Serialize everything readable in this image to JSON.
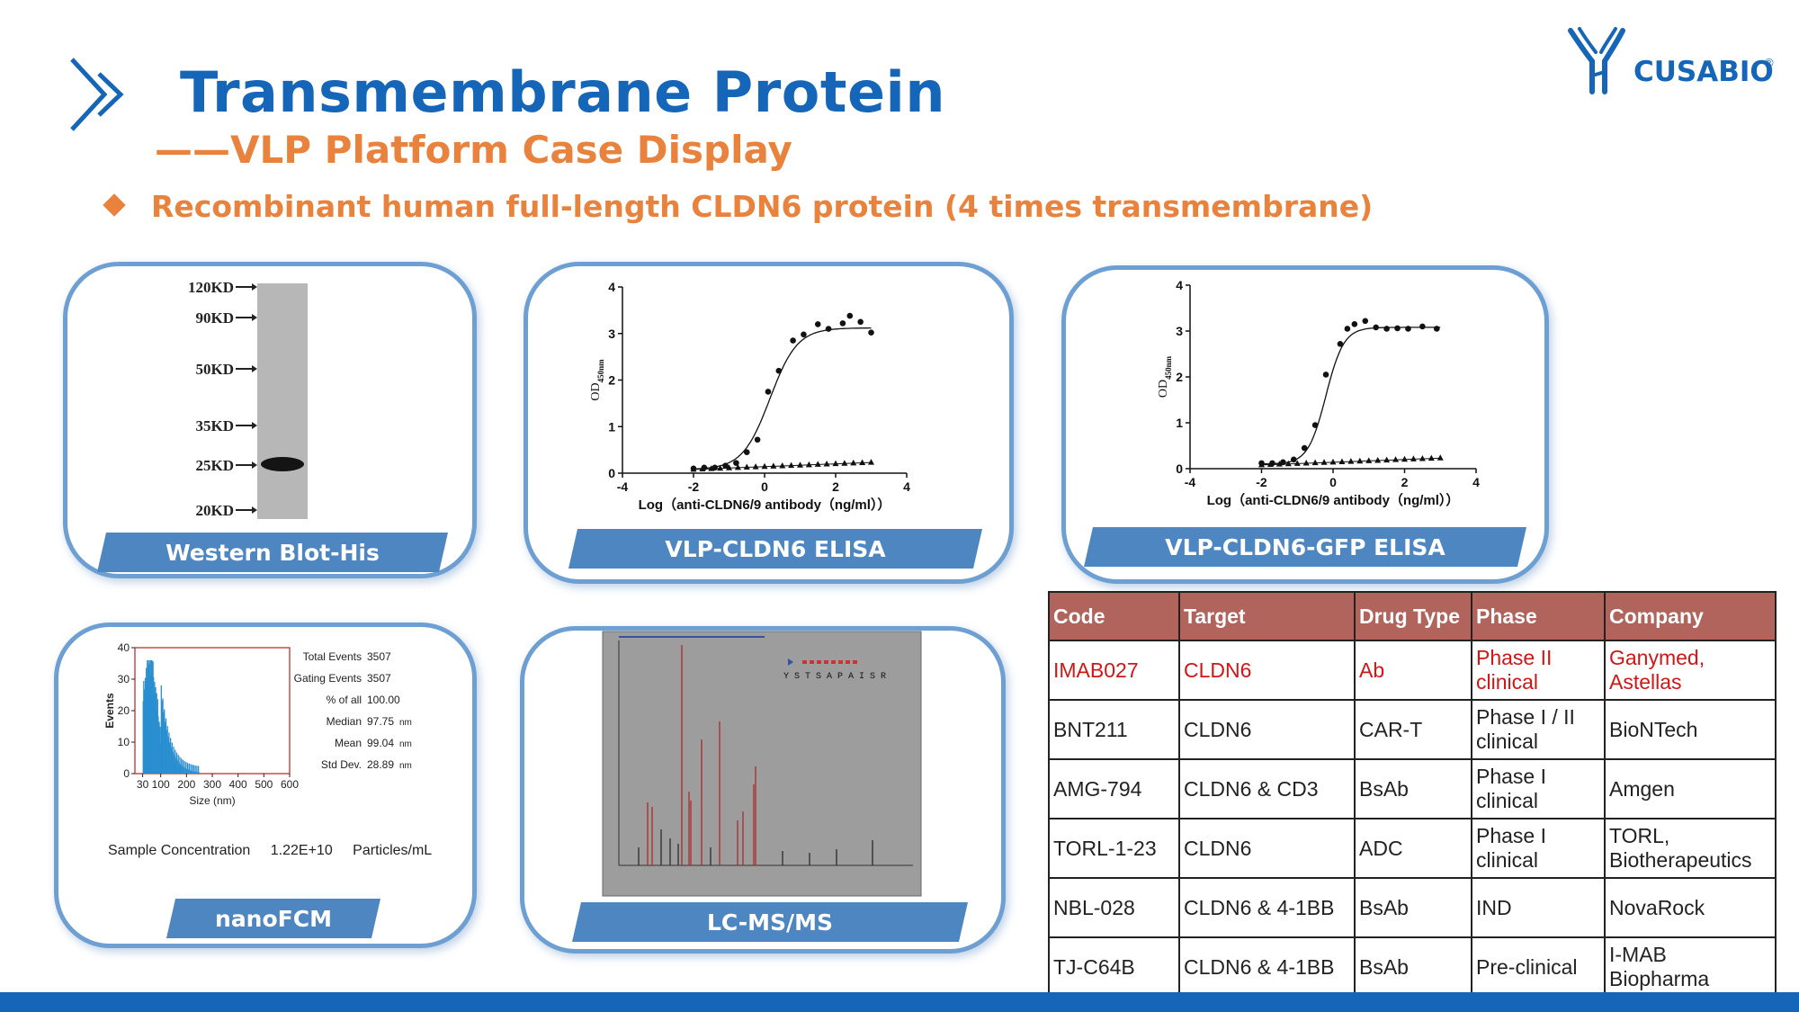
{
  "header": {
    "title": "Transmembrane Protein",
    "subtitle": "——VLP Platform Case Display",
    "bullet": "Recombinant human full-length CLDN6 protein (4 times transmembrane)"
  },
  "logo": {
    "text": "CUSABIO",
    "mark": "®"
  },
  "colors": {
    "title_blue": "#1565b8",
    "accent_orange": "#e8823c",
    "banner_blue": "#4e86c2",
    "table_header": "#b0645c",
    "highlight_red": "#d11616"
  },
  "panels": {
    "western_blot": {
      "label": "Western Blot-His",
      "markers": [
        "120KD",
        "90KD",
        "50KD",
        "35KD",
        "25KD",
        "20KD"
      ]
    },
    "elisa1": {
      "label": "VLP-CLDN6 ELISA",
      "ylabel": "OD",
      "ylabel_sub": "450nm",
      "xlabel": "Log（anti-CLDN6/9 antibody（ng/ml））",
      "xticks": [
        "-4",
        "-2",
        "0",
        "2",
        "4"
      ],
      "yticks": [
        "0",
        "1",
        "2",
        "3",
        "4"
      ]
    },
    "elisa2": {
      "label": "VLP-CLDN6-GFP ELISA",
      "ylabel": "OD",
      "ylabel_sub": "450nm",
      "xlabel": "Log（anti-CLDN6/9 antibody（ng/ml））",
      "xticks": [
        "-4",
        "-2",
        "0",
        "2",
        "4"
      ],
      "yticks": [
        "0",
        "1",
        "2",
        "3",
        "4"
      ]
    },
    "nanofcm": {
      "label": "nanoFCM",
      "ylabel": "Events",
      "xlabel": "Size (nm)",
      "yticks": [
        "0",
        "10",
        "20",
        "30",
        "40"
      ],
      "xticks": [
        "30",
        "100",
        "200",
        "300",
        "400",
        "500",
        "600"
      ],
      "stats": [
        {
          "name": "Total Events",
          "value": "3507",
          "unit": ""
        },
        {
          "name": "Gating Events",
          "value": "3507",
          "unit": ""
        },
        {
          "name": "% of all",
          "value": "100.00",
          "unit": ""
        },
        {
          "name": "Median",
          "value": "97.75",
          "unit": "nm"
        },
        {
          "name": "Mean",
          "value": "99.04",
          "unit": "nm"
        },
        {
          "name": "Std Dev.",
          "value": "28.89",
          "unit": "nm"
        }
      ],
      "sample_label": "Sample Concentration",
      "sample_value": "1.22E+10",
      "sample_unit": "Particles/mL"
    },
    "lcms": {
      "label": "LC-MS/MS",
      "sequence": "Y S T S A P A I S R"
    }
  },
  "table": {
    "headers": [
      "Code",
      "Target",
      "Drug Type",
      "Phase",
      "Company"
    ],
    "rows": [
      {
        "code": "IMAB027",
        "target": "CLDN6",
        "type": "Ab",
        "phase": "Phase II clinical",
        "company": "Ganymed, Astellas",
        "highlight": true
      },
      {
        "code": "BNT211",
        "target": "CLDN6",
        "type": "CAR-T",
        "phase": "Phase I / II clinical",
        "company": "BioNTech",
        "highlight": false
      },
      {
        "code": "AMG-794",
        "target": "CLDN6 & CD3",
        "type": "BsAb",
        "phase": "Phase I clinical",
        "company": "Amgen",
        "highlight": false
      },
      {
        "code": "TORL-1-23",
        "target": "CLDN6",
        "type": "ADC",
        "phase": "Phase I clinical",
        "company": "TORL, Biotherapeutics",
        "highlight": false
      },
      {
        "code": "NBL-028",
        "target": "CLDN6 & 4-1BB",
        "type": "BsAb",
        "phase": "IND",
        "company": "NovaRock",
        "highlight": false
      },
      {
        "code": "TJ-C64B",
        "target": "CLDN6 & 4-1BB",
        "type": "BsAb",
        "phase": "Pre-clinical",
        "company": "I-MAB Biopharma",
        "highlight": false
      }
    ]
  }
}
